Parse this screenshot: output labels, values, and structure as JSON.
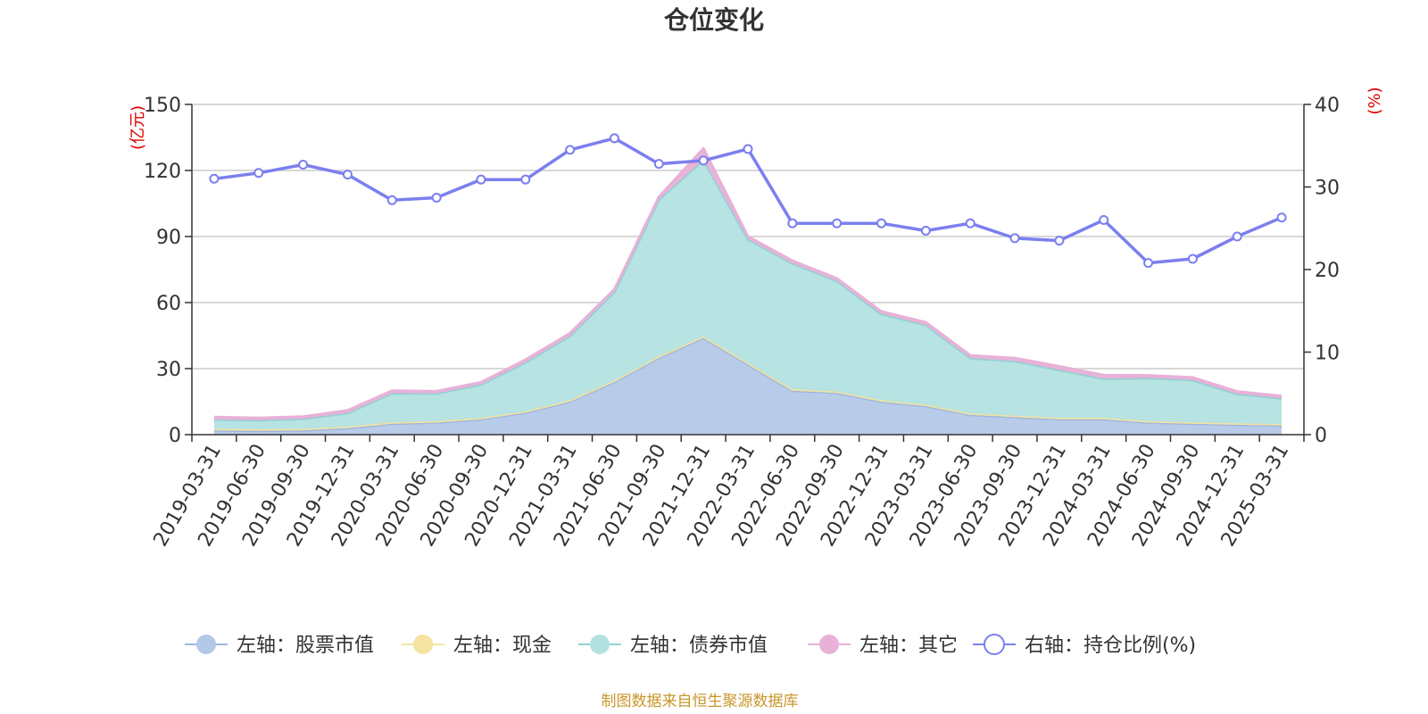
{
  "title": "仓位变化",
  "source_note": "制图数据来自恒生聚源数据库",
  "chart_data": {
    "type": "area",
    "title": "仓位变化",
    "categories": [
      "2019-03-31",
      "2019-06-30",
      "2019-09-30",
      "2019-12-31",
      "2020-03-31",
      "2020-06-30",
      "2020-09-30",
      "2020-12-31",
      "2021-03-31",
      "2021-06-30",
      "2021-09-30",
      "2021-12-31",
      "2022-03-31",
      "2022-06-30",
      "2022-09-30",
      "2022-12-31",
      "2023-03-31",
      "2023-06-30",
      "2023-09-30",
      "2023-12-31",
      "2024-03-31",
      "2024-06-30",
      "2024-09-30",
      "2024-12-31",
      "2025-03-31"
    ],
    "left_axis": {
      "unit": "(亿元)",
      "ylim": [
        0,
        150
      ],
      "ticks": [
        "0",
        "30",
        "60",
        "90",
        "120",
        "150"
      ]
    },
    "right_axis": {
      "unit": "(%)",
      "ylim": [
        0,
        40
      ],
      "ticks": [
        "0",
        "10",
        "20",
        "30",
        "40"
      ]
    },
    "grid": true,
    "legend_position": "bottom",
    "series": [
      {
        "name": "左轴：股票市值",
        "axis": "left",
        "stack": true,
        "color": "#9db7e0",
        "fill": "#b4c8e8",
        "values": [
          2,
          1.8,
          2,
          3,
          5,
          5.5,
          7,
          10,
          15,
          24,
          35,
          44,
          32,
          20,
          19,
          15,
          13,
          9,
          8,
          7,
          7,
          5.5,
          5,
          4.5,
          4.2
        ]
      },
      {
        "name": "左轴：现金",
        "axis": "left",
        "stack": true,
        "color": "#f5e3a0",
        "fill": "#f5e3a0",
        "values": [
          0.6,
          0.6,
          0.6,
          0.6,
          0.6,
          0.6,
          0.6,
          0.6,
          0.6,
          0.6,
          0.6,
          0.6,
          0.6,
          0.6,
          0.6,
          0.6,
          0.6,
          0.6,
          0.6,
          0.6,
          0.6,
          0.6,
          0.6,
          0.6,
          0.6
        ]
      },
      {
        "name": "左轴：债券市值",
        "axis": "left",
        "stack": true,
        "color": "#8fd3d3",
        "fill": "#b3e1e1",
        "values": [
          4.2,
          4.2,
          4.6,
          6.2,
          13.2,
          12.6,
          15.2,
          22.2,
          29.2,
          40.2,
          71.2,
          80.2,
          56.2,
          57.2,
          50.2,
          39.2,
          36.2,
          25.2,
          24.8,
          21.8,
          17.8,
          19.6,
          19.2,
          13.4,
          11.7
        ]
      },
      {
        "name": "左轴：其它",
        "axis": "left",
        "stack": true,
        "color": "#e8b1d8",
        "fill": "#e8b1d8",
        "values": [
          1.2,
          1,
          1,
          1.2,
          1.2,
          1,
          1,
          1.2,
          1.2,
          1.2,
          1.2,
          5.2,
          1.2,
          1.2,
          1.2,
          1.2,
          1.2,
          1.2,
          1.4,
          1.6,
          1.6,
          1.2,
          1.2,
          1.1,
          1
        ]
      },
      {
        "name": "右轴：持仓比例(%)",
        "axis": "right",
        "type": "line",
        "color": "#7b7fef",
        "values": [
          31,
          31.7,
          32.7,
          31.5,
          28.4,
          28.7,
          30.9,
          30.9,
          34.5,
          35.9,
          32.8,
          33.2,
          34.6,
          25.6,
          25.6,
          25.6,
          24.7,
          25.6,
          23.8,
          23.5,
          26,
          20.8,
          21.3,
          24,
          26.3
        ]
      }
    ]
  }
}
